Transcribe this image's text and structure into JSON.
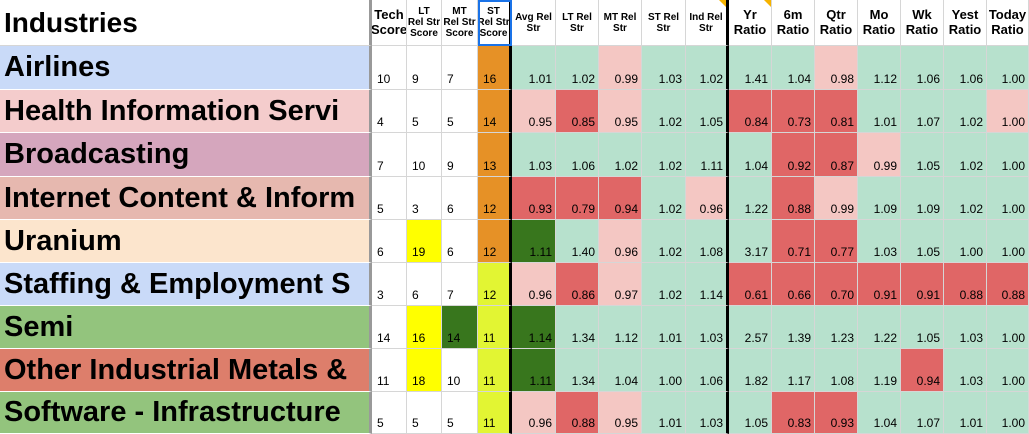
{
  "colors": {
    "green": "#b7e1cd",
    "pink": "#f4c7c3",
    "red": "#e06666",
    "darkgreen": "#38761d",
    "yellow": "#ffff00",
    "lime": "#e2f533",
    "orange": "#e69126",
    "white": "#ffffff",
    "selection": "#1a73e8",
    "corner_marker": "#f6b300"
  },
  "header": {
    "industries": "Industries",
    "columns": [
      {
        "key": "tech",
        "l1": "Tech",
        "l2": "Score",
        "size": "big"
      },
      {
        "key": "lt",
        "l1": "LT",
        "l2": "Rel Str",
        "l3": "Score",
        "size": "small"
      },
      {
        "key": "mt",
        "l1": "MT",
        "l2": "Rel Str",
        "l3": "Score",
        "size": "small"
      },
      {
        "key": "st",
        "l1": "ST",
        "l2": "Rel Str",
        "l3": "Score",
        "size": "small",
        "selected": true
      },
      {
        "key": "avg",
        "l1": "Avg Rel",
        "l2": "Str",
        "size": "small"
      },
      {
        "key": "ltrs",
        "l1": "LT Rel",
        "l2": "Str",
        "size": "small"
      },
      {
        "key": "mtrs",
        "l1": "MT Rel",
        "l2": "Str",
        "size": "small"
      },
      {
        "key": "strs",
        "l1": "ST Rel",
        "l2": "Str",
        "size": "small"
      },
      {
        "key": "indrs",
        "l1": "Ind Rel",
        "l2": "Str",
        "size": "small",
        "marker": true
      },
      {
        "key": "yr",
        "l1": "Yr",
        "l2": "Ratio",
        "size": "big",
        "marker": true
      },
      {
        "key": "m6",
        "l1": "6m",
        "l2": "Ratio",
        "size": "big"
      },
      {
        "key": "qtr",
        "l1": "Qtr",
        "l2": "Ratio",
        "size": "big"
      },
      {
        "key": "mo",
        "l1": "Mo",
        "l2": "Ratio",
        "size": "big"
      },
      {
        "key": "wk",
        "l1": "Wk",
        "l2": "Ratio",
        "size": "big"
      },
      {
        "key": "yest",
        "l1": "Yest",
        "l2": "Ratio",
        "size": "big"
      },
      {
        "key": "today",
        "l1": "Today",
        "l2": "Ratio",
        "size": "big"
      }
    ]
  },
  "rows": [
    {
      "name": "Airlines",
      "name_bg": "#c9daf8",
      "values": [
        "10",
        "9",
        "7",
        "16",
        "1.01",
        "1.02",
        "0.99",
        "1.03",
        "1.02",
        "1.41",
        "1.04",
        "0.98",
        "1.12",
        "1.06",
        "1.06",
        "1.00"
      ],
      "fills": [
        "white",
        "white",
        "white",
        "orange",
        "green",
        "green",
        "pink",
        "green",
        "green",
        "green",
        "green",
        "pink",
        "green",
        "green",
        "green",
        "green"
      ]
    },
    {
      "name": "Health Information Servi",
      "name_bg": "#f4cccc",
      "values": [
        "4",
        "5",
        "5",
        "14",
        "0.95",
        "0.85",
        "0.95",
        "1.02",
        "1.05",
        "0.84",
        "0.73",
        "0.81",
        "1.01",
        "1.07",
        "1.02",
        "1.00"
      ],
      "fills": [
        "white",
        "white",
        "white",
        "orange",
        "pink",
        "red",
        "pink",
        "green",
        "green",
        "red",
        "red",
        "red",
        "green",
        "green",
        "green",
        "pink"
      ]
    },
    {
      "name": "Broadcasting",
      "name_bg": "#d5a6bd",
      "values": [
        "7",
        "10",
        "9",
        "13",
        "1.03",
        "1.06",
        "1.02",
        "1.02",
        "1.11",
        "1.04",
        "0.92",
        "0.87",
        "0.99",
        "1.05",
        "1.02",
        "1.00"
      ],
      "fills": [
        "white",
        "white",
        "white",
        "orange",
        "green",
        "green",
        "green",
        "green",
        "green",
        "green",
        "red",
        "red",
        "pink",
        "green",
        "green",
        "green"
      ]
    },
    {
      "name": "Internet Content & Inform",
      "name_bg": "#e6b8af",
      "values": [
        "5",
        "3",
        "6",
        "12",
        "0.93",
        "0.79",
        "0.94",
        "1.02",
        "0.96",
        "1.22",
        "0.88",
        "0.99",
        "1.09",
        "1.09",
        "1.02",
        "1.00"
      ],
      "fills": [
        "white",
        "white",
        "white",
        "orange",
        "red",
        "red",
        "red",
        "green",
        "pink",
        "green",
        "red",
        "pink",
        "green",
        "green",
        "green",
        "green"
      ]
    },
    {
      "name": "Uranium",
      "name_bg": "#fce5cd",
      "values": [
        "6",
        "19",
        "6",
        "12",
        "1.11",
        "1.40",
        "0.96",
        "1.02",
        "1.08",
        "3.17",
        "0.71",
        "0.77",
        "1.03",
        "1.05",
        "1.00",
        "1.00"
      ],
      "fills": [
        "white",
        "yellow",
        "white",
        "orange",
        "darkgreen",
        "green",
        "pink",
        "green",
        "green",
        "green",
        "red",
        "red",
        "green",
        "green",
        "green",
        "green"
      ]
    },
    {
      "name": "Staffing & Employment S",
      "name_bg": "#c9daf8",
      "values": [
        "3",
        "6",
        "7",
        "12",
        "0.96",
        "0.86",
        "0.97",
        "1.02",
        "1.14",
        "0.61",
        "0.66",
        "0.70",
        "0.91",
        "0.91",
        "0.88",
        "0.88"
      ],
      "fills": [
        "white",
        "white",
        "white",
        "lime",
        "pink",
        "red",
        "pink",
        "green",
        "green",
        "red",
        "red",
        "red",
        "red",
        "red",
        "red",
        "red"
      ]
    },
    {
      "name": "Semi",
      "name_bg": "#93c47d",
      "values": [
        "14",
        "16",
        "14",
        "11",
        "1.14",
        "1.34",
        "1.12",
        "1.01",
        "1.03",
        "2.57",
        "1.39",
        "1.23",
        "1.22",
        "1.05",
        "1.03",
        "1.00"
      ],
      "fills": [
        "white",
        "yellow",
        "darkgreen",
        "lime",
        "darkgreen",
        "green",
        "green",
        "green",
        "green",
        "green",
        "green",
        "green",
        "green",
        "green",
        "green",
        "green"
      ]
    },
    {
      "name": "Other Industrial Metals &",
      "name_bg": "#dd7e6b",
      "values": [
        "11",
        "18",
        "10",
        "11",
        "1.11",
        "1.34",
        "1.04",
        "1.00",
        "1.06",
        "1.82",
        "1.17",
        "1.08",
        "1.19",
        "0.94",
        "1.03",
        "1.00"
      ],
      "fills": [
        "white",
        "yellow",
        "white",
        "lime",
        "darkgreen",
        "green",
        "green",
        "green",
        "green",
        "green",
        "green",
        "green",
        "green",
        "red",
        "green",
        "green"
      ]
    },
    {
      "name": "Software - Infrastructure",
      "name_bg": "#93c47d",
      "values": [
        "5",
        "5",
        "5",
        "11",
        "0.96",
        "0.88",
        "0.95",
        "1.01",
        "1.03",
        "1.05",
        "0.83",
        "0.93",
        "1.04",
        "1.07",
        "1.01",
        "1.00"
      ],
      "fills": [
        "white",
        "white",
        "white",
        "lime",
        "pink",
        "red",
        "pink",
        "green",
        "green",
        "green",
        "red",
        "red",
        "green",
        "green",
        "green",
        "green"
      ]
    }
  ]
}
